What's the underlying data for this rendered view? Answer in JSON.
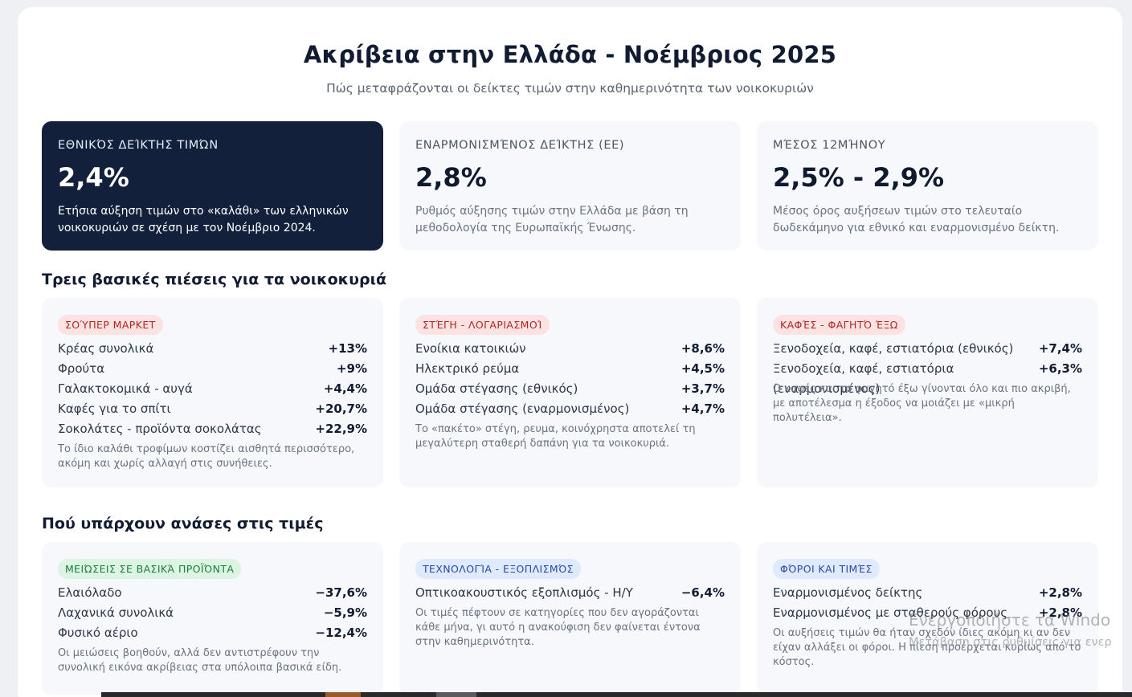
{
  "header": {
    "title": "Ακρίβεια στην Ελλάδα - Νοέμβριος 2025",
    "subtitle": "Πώς μεταφράζονται οι δείκτες τιμών στην καθημερινότητα των νοικοκυριών"
  },
  "kpis": [
    {
      "label": "ΕΘΝΙΚΌΣ ΔΕΊΚΤΗΣ ΤΙΜΏΝ",
      "value": "2,4%",
      "desc": "Ετήσια αύξηση τιμών στο «καλάθι» των ελληνικών νοικοκυριών σε σχέση με τον Νοέμβριο 2024."
    },
    {
      "label": "ΕΝΑΡΜΟΝΙΣΜΈΝΟΣ ΔΕΊΚΤΗΣ (ΕΕ)",
      "value": "2,8%",
      "desc": "Ρυθμός αύξησης τιμών στην Ελλάδα με βάση τη μεθοδολογία της Ευρωπαϊκής Ένωσης."
    },
    {
      "label": "ΜΈΣΟΣ 12ΜΉΝΟΥ",
      "value": "2,5% - 2,9%",
      "desc": "Μέσος όρος αυξήσεων τιμών στο τελευταίο δωδεκάμηνο για εθνικό και εναρμονισμένο δείκτη."
    }
  ],
  "pressures": {
    "title": "Τρεις βασικές πιέσεις για τα νοικοκυριά",
    "cards": [
      {
        "badge": "ΣΟΎΠΕΡ ΜΑΡΚΕΤ",
        "rows": [
          {
            "label": "Κρέας συνολικά",
            "value": "+13%"
          },
          {
            "label": "Φρούτα",
            "value": "+9%"
          },
          {
            "label": "Γαλακτοκομικά - αυγά",
            "value": "+4,4%"
          },
          {
            "label": "Καφές για το σπίτι",
            "value": "+20,7%"
          },
          {
            "label": "Σοκολάτες - προϊόντα σοκολάτας",
            "value": "+22,9%"
          }
        ],
        "note": "Το ίδιο καλάθι τροφίμων κοστίζει αισθητά περισσότερο, ακόμη και χωρίς αλλαγή στις συνήθειες."
      },
      {
        "badge": "ΣΤΈΓΗ - ΛΟΓΑΡΙΑΣΜΟΊ",
        "rows": [
          {
            "label": "Ενοίκια κατοικιών",
            "value": "+8,6%"
          },
          {
            "label": "Ηλεκτρικό ρεύμα",
            "value": "+4,5%"
          },
          {
            "label": "Ομάδα στέγασης (εθνικός)",
            "value": "+3,7%"
          },
          {
            "label": "Ομάδα στέγασης (εναρμονισμένος)",
            "value": "+4,7%"
          }
        ],
        "note": "Το «πακέτο» στέγη, ρευμα, κοινόχρηστα αποτελεί τη μεγαλύτερη σταθερή δαπάνη για τα νοικοκυριά."
      },
      {
        "badge": "ΚΑΦΈΣ - ΦΑΓΗΤΌ ΈΞΩ",
        "rows": [
          {
            "label": "Ξενοδοχεία, καφέ, εστιατόρια (εθνικός)",
            "value": "+7,4%"
          },
          {
            "label": "Ξενοδοχεία, καφέ, εστιατόρια (εναρμονισμένος)",
            "value": "+6,3%"
          }
        ],
        "note": "Ο καφές και το φαγητό έξω γίνονται όλο και πιο ακριβή, με αποτέλεσμα η έξοδος να μοιάζει με «μικρή πολυτέλεια»."
      }
    ]
  },
  "relief": {
    "title": "Πού υπάρχουν ανάσες στις τιμές",
    "cards": [
      {
        "badge": "ΜΕΙΏΣΕΙΣ ΣΕ ΒΑΣΙΚΆ ΠΡΟΪΌΝΤΑ",
        "rows": [
          {
            "label": "Ελαιόλαδο",
            "value": "−37,6%"
          },
          {
            "label": "Λαχανικά συνολικά",
            "value": "−5,9%"
          },
          {
            "label": "Φυσικό αέριο",
            "value": "−12,4%"
          }
        ],
        "note": "Οι μειώσεις βοηθούν, αλλά δεν αντιστρέφουν την συνολική εικόνα ακρίβειας στα υπόλοιπα βασικά είδη."
      },
      {
        "badge": "ΤΕΧΝΟΛΟΓΊΑ - ΕΞΟΠΛΙΣΜΌΣ",
        "rows": [
          {
            "label": "Οπτικοακουστικός εξοπλισμός - Η/Υ",
            "value": "−6,4%"
          }
        ],
        "note": "Οι τιμές πέφτουν σε κατηγορίες που δεν αγοράζονται κάθε μήνα, γι αυτό η ανακούφιση δεν φαίνεται έντονα στην καθημερινότητα."
      },
      {
        "badge": "ΦΌΡΟΙ ΚΑΙ ΤΙΜΈΣ",
        "rows": [
          {
            "label": "Εναρμονισμένος δείκτης",
            "value": "+2,8%"
          },
          {
            "label": "Εναρμονισμένος με σταθερούς φόρους",
            "value": "+2,8%"
          }
        ],
        "note": "Οι αυξήσεις τιμών θα ήταν σχεδόν ίδιες ακόμη κι αν δεν είχαν αλλάξει οι φόροι. Η πίεση προέρχεται κυρίως από το κόστος."
      }
    ]
  },
  "watermark": {
    "line1": "Ενεργοποιήστε τα Windo",
    "line2": "Μετάβαση στις ρυθμίσεις για ενερ"
  }
}
